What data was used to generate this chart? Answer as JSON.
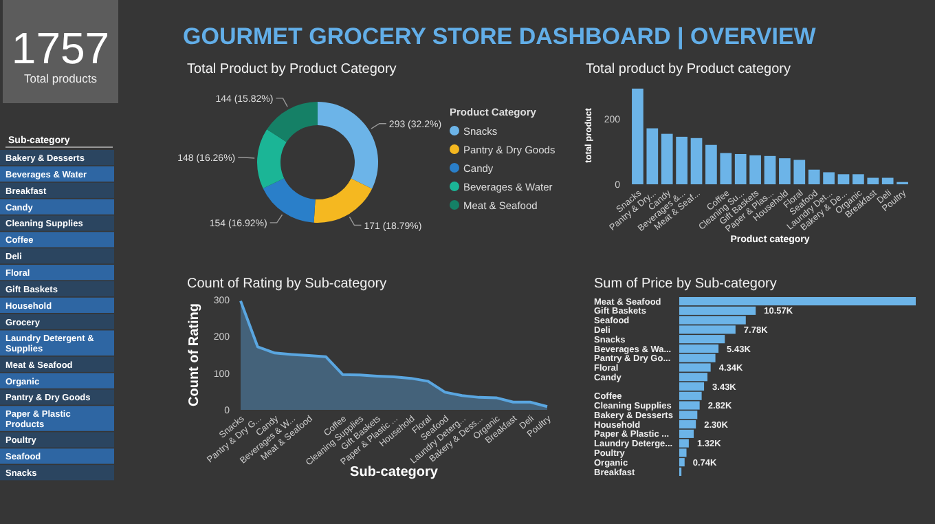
{
  "chart_data": [
    {
      "type": "other",
      "title": "Total products",
      "annotations": [
        "1757"
      ]
    },
    {
      "type": "other",
      "title": "GOURMET GROCERY STORE DASHBOARD | OVERVIEW"
    },
    {
      "type": "other",
      "title": "Sub-category",
      "annotations": [
        "Bakery & Desserts",
        "Beverages & Water",
        "Breakfast",
        "Candy",
        "Cleaning Supplies",
        "Coffee",
        "Deli",
        "Floral",
        "Gift Baskets",
        "Household",
        "Grocery",
        "Laundry Detergent & Supplies",
        "Meat & Seafood",
        "Organic",
        "Pantry & Dry Goods",
        "Paper & Plastic Products",
        "Poultry",
        "Seafood",
        "Snacks"
      ]
    },
    {
      "type": "donut",
      "title": "Total Product by Product Category",
      "legend_title": "Product Category",
      "legend": "right",
      "categories": [
        "Snacks",
        "Pantry & Dry Goods",
        "Candy",
        "Beverages & Water",
        "Meat & Seafood"
      ],
      "values": [
        293,
        171,
        154,
        148,
        144
      ],
      "colors": [
        "#6cb4e8",
        "#f5b820",
        "#2a7fc9",
        "#1bb596",
        "#158066"
      ],
      "value_labels": [
        "293 (32.2%)",
        "171 (18.79%)",
        "154 (16.92%)",
        "148 (16.26%)",
        "144 (15.82%)"
      ]
    },
    {
      "type": "bar",
      "title": "Total product by Product category",
      "xlabel": "Product category",
      "ylabel": "total product",
      "categories": [
        "Snacks",
        "Pantry & Dry...",
        "Candy",
        "Beverages &...",
        "Meat & Seaf...",
        null,
        "Coffee",
        "Cleaning Su...",
        "Gift Baskets",
        "Paper & Plas...",
        "Household",
        "Floral",
        "Seafood",
        "Laundry Det...",
        "Bakery & De...",
        "Organic",
        "Breakfast",
        "Deli",
        "Poultry"
      ],
      "values": [
        294,
        172,
        155,
        146,
        142,
        121,
        96,
        93,
        89,
        87,
        80,
        75,
        45,
        37,
        31,
        31,
        20,
        20,
        7
      ],
      "color": "#6cb4e8",
      "ylim": [
        0,
        300
      ],
      "yticks": [
        0,
        200
      ]
    },
    {
      "type": "area",
      "title": "Count of Rating by Sub-category",
      "xlabel": "Sub-category",
      "ylabel": "Count of Rating",
      "categories": [
        "Snacks",
        "Pantry & Dry G...",
        "Candy",
        "Beverages & W...",
        "Meat & Seafood",
        null,
        "Coffee",
        "Cleaning Supplies",
        "Gift Baskets",
        "Paper & Plastic ...",
        "Household",
        "Floral",
        "Seafood",
        "Laundry Deterg...",
        "Bakery & Dess...",
        "Organic",
        "Breakfast",
        "Deli",
        "Poultry"
      ],
      "values": [
        297,
        172,
        155,
        151,
        148,
        145,
        96,
        95,
        92,
        90,
        86,
        78,
        48,
        39,
        34,
        33,
        21,
        21,
        9
      ],
      "color": "#5aa6e0",
      "ylim": [
        0,
        300
      ],
      "yticks": [
        0,
        100,
        200,
        300
      ]
    },
    {
      "type": "bar",
      "orientation": "horizontal",
      "title": "Sum of Price by Sub-category",
      "tick_labels": "y",
      "categories": [
        "Meat & Seafood",
        "Gift Baskets",
        "Seafood",
        "Deli",
        "Snacks",
        "Beverages & Wa...",
        "Pantry & Dry Go...",
        "Floral",
        "Candy",
        null,
        "Coffee",
        "Cleaning Supplies",
        "Bakery & Desserts",
        "Household",
        "Paper & Plastic ...",
        "Laundry Deterge...",
        "Poultry",
        "Organic",
        "Breakfast"
      ],
      "values": [
        32.7,
        10.57,
        9.2,
        7.78,
        6.3,
        5.43,
        5.0,
        4.34,
        3.9,
        3.43,
        3.1,
        2.82,
        2.5,
        2.3,
        2.0,
        1.32,
        1.0,
        0.74,
        0.3
      ],
      "value_labels": [
        null,
        "10.57K",
        null,
        "7.78K",
        null,
        "5.43K",
        null,
        "4.34K",
        null,
        "3.43K",
        null,
        "2.82K",
        null,
        "2.30K",
        null,
        "1.32K",
        null,
        "0.74K",
        null
      ],
      "color": "#6cb4e8"
    }
  ]
}
